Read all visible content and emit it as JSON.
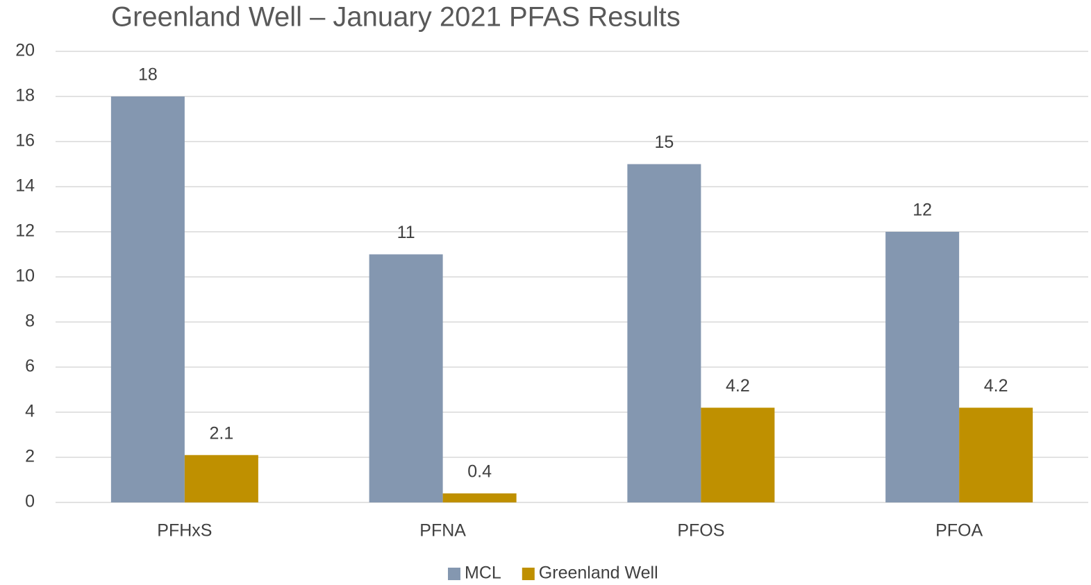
{
  "chart_data": {
    "type": "bar",
    "title": "Greenland Well – January 2021 PFAS Results",
    "categories": [
      "PFHxS",
      "PFNA",
      "PFOS",
      "PFOA"
    ],
    "series": [
      {
        "name": "MCL",
        "color": "#8497b0",
        "values": [
          18,
          11,
          15,
          12
        ]
      },
      {
        "name": "Greenland Well",
        "color": "#bf9000",
        "values": [
          2.1,
          0.4,
          4.2,
          4.2
        ]
      }
    ],
    "ylim": [
      0,
      20
    ],
    "yticks": [
      0,
      2,
      4,
      6,
      8,
      10,
      12,
      14,
      16,
      18,
      20
    ],
    "grid": true,
    "legend": "bottom"
  }
}
